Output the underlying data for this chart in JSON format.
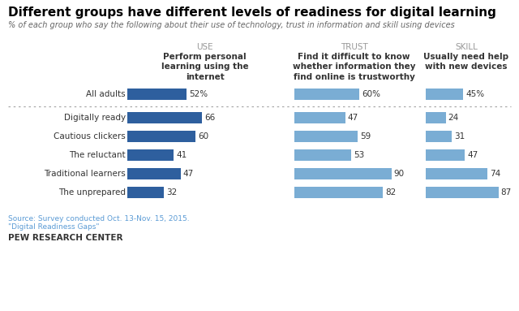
{
  "title": "Different groups have different levels of readiness for digital learning",
  "subtitle": "% of each group who say the following about their use of technology, trust in information and skill using devices",
  "categories": [
    "All adults",
    "Digitally ready",
    "Cautious clickers",
    "The reluctant",
    "Traditional learners",
    "The unprepared"
  ],
  "col_headers": [
    "USE",
    "TRUST",
    "SKILL"
  ],
  "col_subheaders": [
    "Perform personal\nlearning using the\ninternet",
    "Find it difficult to know\nwhether information they\nfind online is trustworthy",
    "Usually need help\nwith new devices"
  ],
  "use_values": [
    52,
    66,
    60,
    41,
    47,
    32
  ],
  "trust_values": [
    60,
    47,
    59,
    53,
    90,
    82
  ],
  "skill_values": [
    45,
    24,
    31,
    47,
    74,
    87
  ],
  "use_labels": [
    "52%",
    "66",
    "60",
    "41",
    "47",
    "32"
  ],
  "trust_labels": [
    "60%",
    "47",
    "59",
    "53",
    "90",
    "82"
  ],
  "skill_labels": [
    "45%",
    "24",
    "31",
    "47",
    "74",
    "87"
  ],
  "use_bar_color": "#2e5f9e",
  "trust_bar_color": "#7aadd4",
  "skill_bar_color": "#7aadd4",
  "background_color": "#ffffff",
  "source_text": "Source: Survey conducted Oct. 13-Nov. 15, 2015.\n\"Digital Readiness Gaps\"",
  "footer_text": "PEW RESEARCH CENTER",
  "col_header_color": "#999999",
  "separator_color": "#aaaaaa",
  "label_color": "#333333",
  "title_color": "#000000",
  "subtitle_color": "#666666",
  "source_color": "#5b9bd5",
  "footer_color": "#333333"
}
